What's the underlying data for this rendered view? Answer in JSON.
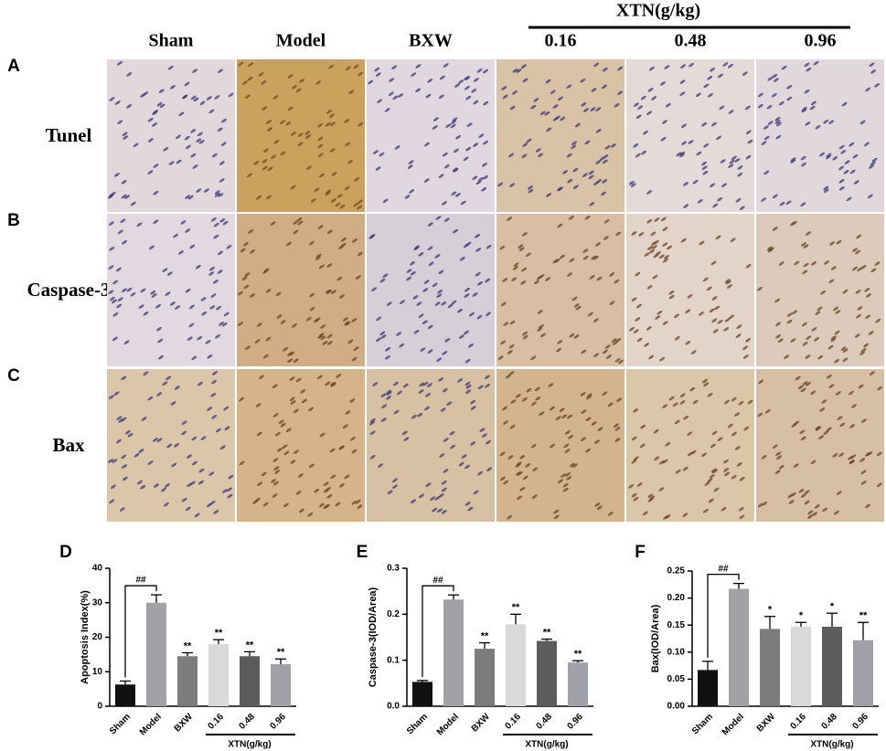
{
  "figure": {
    "group_label": "XTN(g/kg)",
    "columns": [
      "Sham",
      "Model",
      "BXW",
      "0.16",
      "0.48",
      "0.96"
    ],
    "rows": [
      "Tunel",
      "Caspase-3",
      "Bax"
    ],
    "panels": [
      "A",
      "B",
      "C"
    ]
  },
  "chart_data": [
    {
      "type": "bar",
      "panel": "D",
      "y_label": "Apoptosis Index(%)",
      "categories": [
        "Sham",
        "Model",
        "BXW",
        "0.16",
        "0.48",
        "0.96"
      ],
      "values": [
        6.3,
        30,
        14.5,
        18,
        14.5,
        12.2
      ],
      "errors": [
        1,
        2.3,
        1,
        1.3,
        1.3,
        1.5
      ],
      "colors": [
        "#111111",
        "#a2a2a6",
        "#7c7c7c",
        "#d9d9d9",
        "#5c5c5c",
        "#a0a0a8"
      ],
      "significance_labels": [
        null,
        null,
        "**",
        "**",
        "**",
        "**"
      ],
      "comparison_label": "##",
      "group_label": "XTN(g/kg)",
      "ylim": [
        0,
        40
      ],
      "yticks": [
        0,
        10,
        20,
        30,
        40
      ]
    },
    {
      "type": "bar",
      "panel": "E",
      "y_label": "Caspase-3(IOD/Area)",
      "categories": [
        "Sham",
        "Model",
        "BXW",
        "0.16",
        "0.48",
        "0.96"
      ],
      "values": [
        0.053,
        0.232,
        0.125,
        0.178,
        0.142,
        0.095
      ],
      "errors": [
        0.003,
        0.01,
        0.013,
        0.022,
        0.004,
        0.004
      ],
      "colors": [
        "#111111",
        "#a2a2a6",
        "#7c7c7c",
        "#d9d9d9",
        "#5c5c5c",
        "#a0a0a8"
      ],
      "significance_labels": [
        null,
        null,
        "**",
        "**",
        "**",
        "**"
      ],
      "comparison_label": "##",
      "group_label": "XTN(g/kg)",
      "ylim": [
        0,
        0.3
      ],
      "yticks": [
        {
          "value": 0,
          "label": "0.0"
        },
        0.1,
        0.2,
        0.3
      ]
    },
    {
      "type": "bar",
      "panel": "F",
      "y_label": "Bax(IOD/Area)",
      "categories": [
        "Sham",
        "Model",
        "BXW",
        "0.16",
        "0.48",
        "0.96"
      ],
      "values": [
        0.067,
        0.217,
        0.143,
        0.147,
        0.147,
        0.122
      ],
      "errors": [
        0.016,
        0.01,
        0.023,
        0.008,
        0.025,
        0.033
      ],
      "colors": [
        "#111111",
        "#a2a2a6",
        "#7c7c7c",
        "#d9d9d9",
        "#5c5c5c",
        "#a0a0a8"
      ],
      "significance_labels": [
        null,
        null,
        "*",
        "*",
        "*",
        "**"
      ],
      "comparison_label": "##",
      "group_label": "XTN(g/kg)",
      "ylim": [
        0,
        0.25
      ],
      "yticks": [
        {
          "value": 0,
          "label": "0.00"
        },
        {
          "value": 0.05,
          "label": "0.05"
        },
        {
          "value": 0.1,
          "label": "0.10"
        },
        {
          "value": 0.15,
          "label": "0.15"
        },
        {
          "value": 0.2,
          "label": "0.20"
        },
        {
          "value": 0.25,
          "label": "0.25"
        }
      ]
    }
  ]
}
